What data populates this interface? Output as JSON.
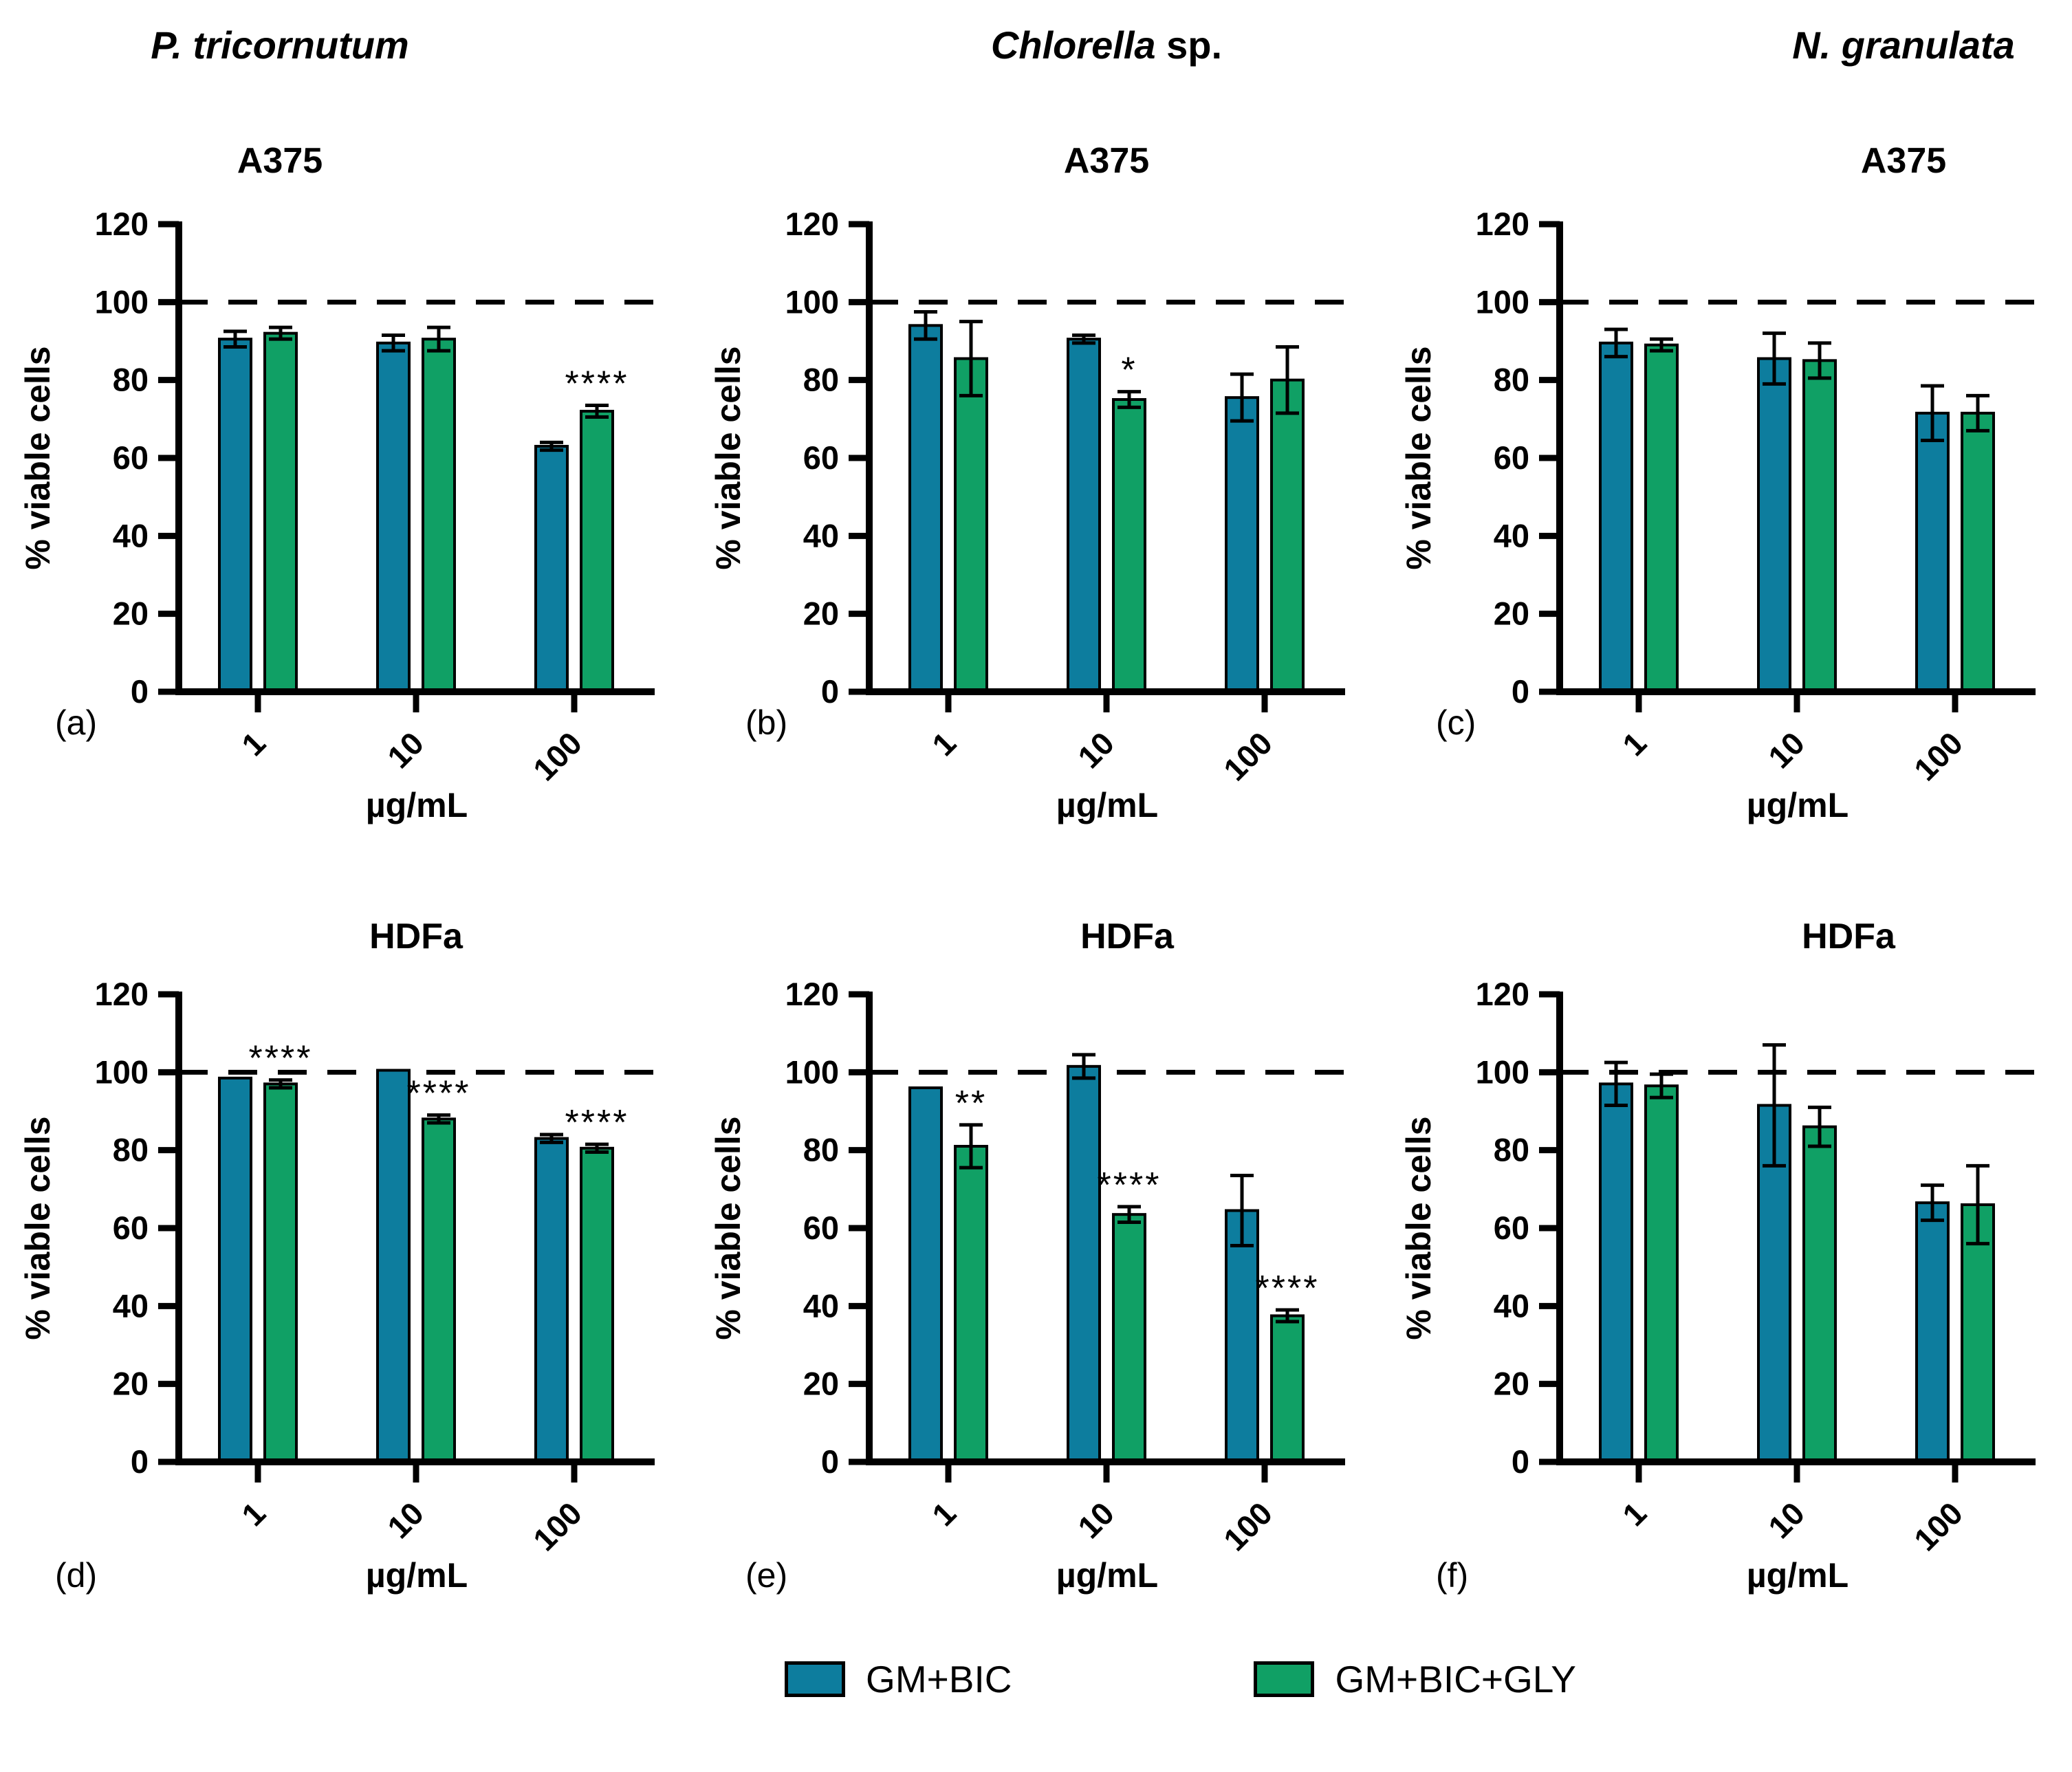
{
  "columns": [
    {
      "species_italic": "P. tricornutum",
      "species_roman": ""
    },
    {
      "species_italic": "Chlorella",
      "species_roman": " sp."
    },
    {
      "species_italic": "N. granulata",
      "species_roman": ""
    }
  ],
  "axes": {
    "ylabel": "% viable cells",
    "xlabel": "µg/mL",
    "ylim": [
      0,
      120
    ],
    "yticks": [
      0,
      20,
      40,
      60,
      80,
      100,
      120
    ],
    "reference_line": 100,
    "grid": false
  },
  "legend": [
    {
      "label": "GM+BIC",
      "color": "#0d7d9e"
    },
    {
      "label": "GM+BIC+GLY",
      "color": "#10a065"
    }
  ],
  "chart_data": [
    {
      "panel": "(a)",
      "type": "bar",
      "row": 0,
      "column": 0,
      "cell_line": "A375",
      "categories": [
        "1",
        "10",
        "100"
      ],
      "series": [
        {
          "name": "GM+BIC",
          "values": [
            90.5,
            89.5,
            63
          ],
          "errors": [
            2,
            2,
            1
          ]
        },
        {
          "name": "GM+BIC+GLY",
          "values": [
            92,
            90.5,
            72
          ],
          "errors": [
            1.5,
            3,
            1.5
          ]
        }
      ],
      "significance": [
        {
          "category_index": 2,
          "series_index": 1,
          "label": "****"
        }
      ]
    },
    {
      "panel": "(b)",
      "type": "bar",
      "row": 0,
      "column": 1,
      "cell_line": "A375",
      "categories": [
        "1",
        "10",
        "100"
      ],
      "series": [
        {
          "name": "GM+BIC",
          "values": [
            94,
            90.5,
            75.5
          ],
          "errors": [
            3.5,
            1,
            6
          ]
        },
        {
          "name": "GM+BIC+GLY",
          "values": [
            85.5,
            75,
            80
          ],
          "errors": [
            9.5,
            2,
            8.5
          ]
        }
      ],
      "significance": [
        {
          "category_index": 1,
          "series_index": 1,
          "label": "*"
        }
      ]
    },
    {
      "panel": "(c)",
      "type": "bar",
      "row": 0,
      "column": 2,
      "cell_line": "A375",
      "categories": [
        "1",
        "10",
        "100"
      ],
      "series": [
        {
          "name": "GM+BIC",
          "values": [
            89.5,
            85.5,
            71.5
          ],
          "errors": [
            3.5,
            6.5,
            7
          ]
        },
        {
          "name": "GM+BIC+GLY",
          "values": [
            89,
            85,
            71.5
          ],
          "errors": [
            1.5,
            4.5,
            4.5
          ]
        }
      ],
      "significance": []
    },
    {
      "panel": "(d)",
      "type": "bar",
      "row": 1,
      "column": 0,
      "cell_line": "HDFa",
      "categories": [
        "1",
        "10",
        "100"
      ],
      "series": [
        {
          "name": "GM+BIC",
          "values": [
            98.5,
            100.5,
            83
          ],
          "errors": [
            0,
            0,
            1
          ]
        },
        {
          "name": "GM+BIC+GLY",
          "values": [
            97,
            88,
            80.5
          ],
          "errors": [
            1,
            1,
            1
          ]
        }
      ],
      "significance": [
        {
          "category_index": 0,
          "series_index": 1,
          "label": "****"
        },
        {
          "category_index": 1,
          "series_index": 1,
          "label": "****"
        },
        {
          "category_index": 2,
          "series_index": 1,
          "label": "****"
        }
      ]
    },
    {
      "panel": "(e)",
      "type": "bar",
      "row": 1,
      "column": 1,
      "cell_line": "HDFa",
      "categories": [
        "1",
        "10",
        "100"
      ],
      "series": [
        {
          "name": "GM+BIC",
          "values": [
            96,
            101.5,
            64.5
          ],
          "errors": [
            0,
            3,
            9
          ]
        },
        {
          "name": "GM+BIC+GLY",
          "values": [
            81,
            63.5,
            37.5
          ],
          "errors": [
            5.5,
            2,
            1.5
          ]
        }
      ],
      "significance": [
        {
          "category_index": 0,
          "series_index": 1,
          "label": "**"
        },
        {
          "category_index": 1,
          "series_index": 1,
          "label": "****"
        },
        {
          "category_index": 2,
          "series_index": 1,
          "label": "****"
        }
      ]
    },
    {
      "panel": "(f)",
      "type": "bar",
      "row": 1,
      "column": 2,
      "cell_line": "HDFa",
      "categories": [
        "1",
        "10",
        "100"
      ],
      "series": [
        {
          "name": "GM+BIC",
          "values": [
            97,
            91.5,
            66.5
          ],
          "errors": [
            5.5,
            15.5,
            4.5
          ]
        },
        {
          "name": "GM+BIC+GLY",
          "values": [
            96.5,
            86,
            66
          ],
          "errors": [
            3,
            5,
            10
          ]
        }
      ],
      "significance": []
    }
  ]
}
